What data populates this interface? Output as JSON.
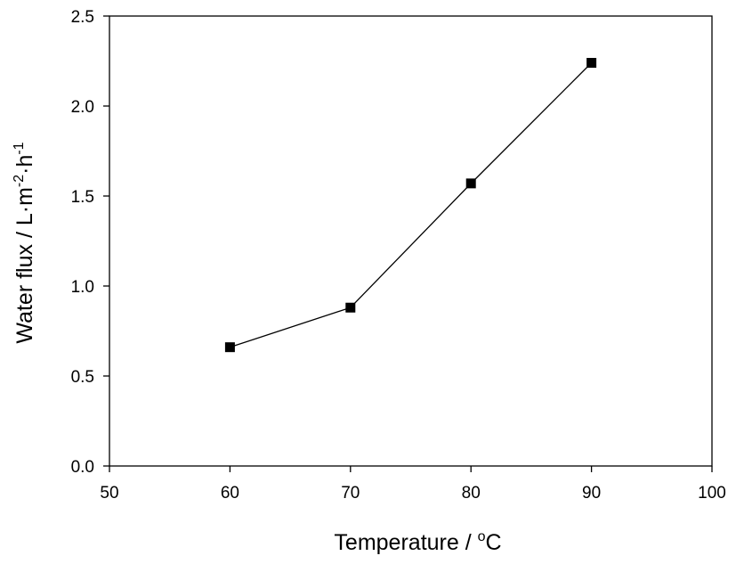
{
  "chart_data": {
    "type": "line",
    "title": "",
    "xlabel": {
      "text": "Temperature / ",
      "unit_sup": "o",
      "unit": "C"
    },
    "ylabel": {
      "parts": [
        {
          "text": "Water flux / L·m",
          "sup": false
        },
        {
          "text": "-2",
          "sup": true
        },
        {
          "text": "·h",
          "sup": false
        },
        {
          "text": "-1",
          "sup": true
        }
      ]
    },
    "xlim": [
      50,
      100
    ],
    "ylim": [
      0,
      2.5
    ],
    "xticks": [
      50,
      60,
      70,
      80,
      90,
      100
    ],
    "yticks": [
      0.0,
      0.5,
      1.0,
      1.5,
      2.0,
      2.5
    ],
    "x_tick_labels": [
      "50",
      "60",
      "70",
      "80",
      "90",
      "100"
    ],
    "y_tick_labels": [
      "0.0",
      "0.5",
      "1.0",
      "1.5",
      "2.0",
      "2.5"
    ],
    "grid": false,
    "legend": "none",
    "series": [
      {
        "marker": "square",
        "color": "#000000",
        "x": [
          60,
          70,
          80,
          90
        ],
        "y": [
          0.66,
          0.88,
          1.57,
          2.24
        ]
      }
    ]
  }
}
